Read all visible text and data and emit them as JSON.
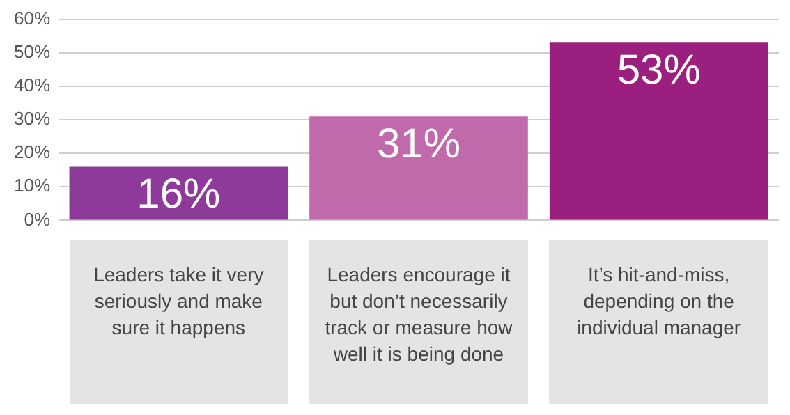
{
  "chart_data": {
    "type": "bar",
    "categories": [
      "Leaders take it very seriously and make sure it happens",
      "Leaders encourage it but don’t necessarily track or measure how well it is being done",
      "It’s hit-and-miss, depending on the individual manager"
    ],
    "values": [
      16,
      31,
      53
    ],
    "colors": [
      "#8e3a9a",
      "#c06aab",
      "#9b1f7e"
    ],
    "value_labels": [
      "16%",
      "31%",
      "53%"
    ],
    "ylim": [
      0,
      60
    ],
    "yticks": [
      {
        "value": 0,
        "label": "0%"
      },
      {
        "value": 10,
        "label": "10%"
      },
      {
        "value": 20,
        "label": "20%"
      },
      {
        "value": 30,
        "label": "30%"
      },
      {
        "value": 40,
        "label": "40%"
      },
      {
        "value": 50,
        "label": "50%"
      },
      {
        "value": 60,
        "label": "60%"
      }
    ],
    "grid": "y",
    "legend": false
  }
}
